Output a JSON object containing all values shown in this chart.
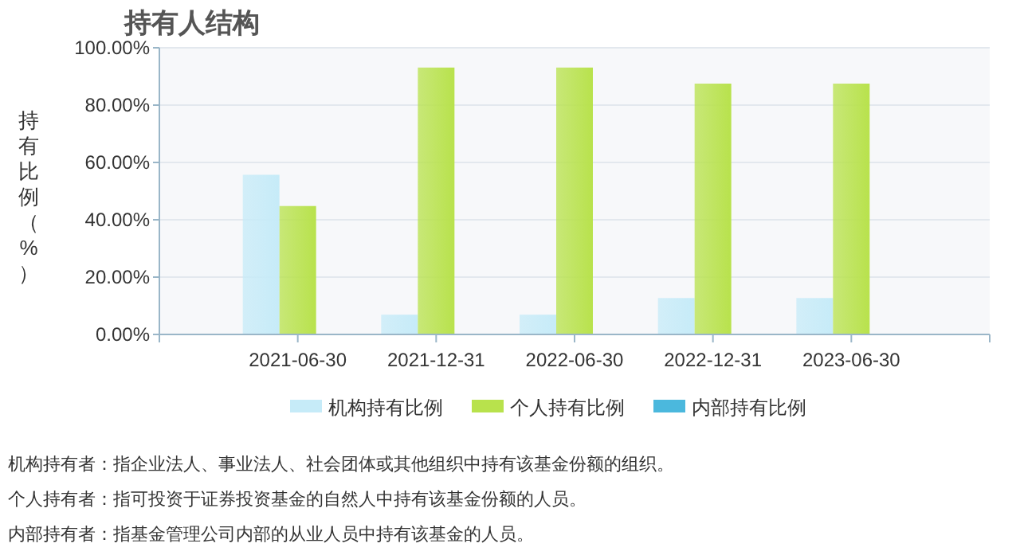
{
  "chart_data": {
    "type": "bar",
    "title": "持有人结构",
    "ylabel": "持有比例（%）",
    "categories": [
      "2021-06-30",
      "2021-12-31",
      "2022-06-30",
      "2022-12-31",
      "2023-06-30"
    ],
    "series": [
      {
        "name": "机构持有比例",
        "color": "#c6ebf8",
        "values": [
          55.7,
          6.9,
          6.9,
          12.7,
          12.7
        ]
      },
      {
        "name": "个人持有比例",
        "color": "#b8e24c",
        "values": [
          44.8,
          93.1,
          93.1,
          87.5,
          87.5
        ]
      },
      {
        "name": "内部持有比例",
        "color": "#4bb8dd",
        "values": [
          0,
          0,
          0,
          0,
          0
        ]
      }
    ],
    "ylim": [
      0,
      100
    ],
    "yticks": [
      {
        "value": 0,
        "label": "0.00%"
      },
      {
        "value": 20,
        "label": "20.00%"
      },
      {
        "value": 40,
        "label": "40.00%"
      },
      {
        "value": 60,
        "label": "60.00%"
      },
      {
        "value": 80,
        "label": "80.00%"
      },
      {
        "value": 100,
        "label": "100.00%"
      }
    ],
    "grid": "y",
    "legend": "bottom",
    "annotations": [
      "机构持有者：指企业法人、事业法人、社会团体或其他组织中持有该基金份额的组织。",
      "个人持有者：指可投资于证券投资基金的自然人中持有该基金份额的人员。",
      "内部持有者：指基金管理公司内部的从业人员中持有该基金的人员。"
    ]
  }
}
